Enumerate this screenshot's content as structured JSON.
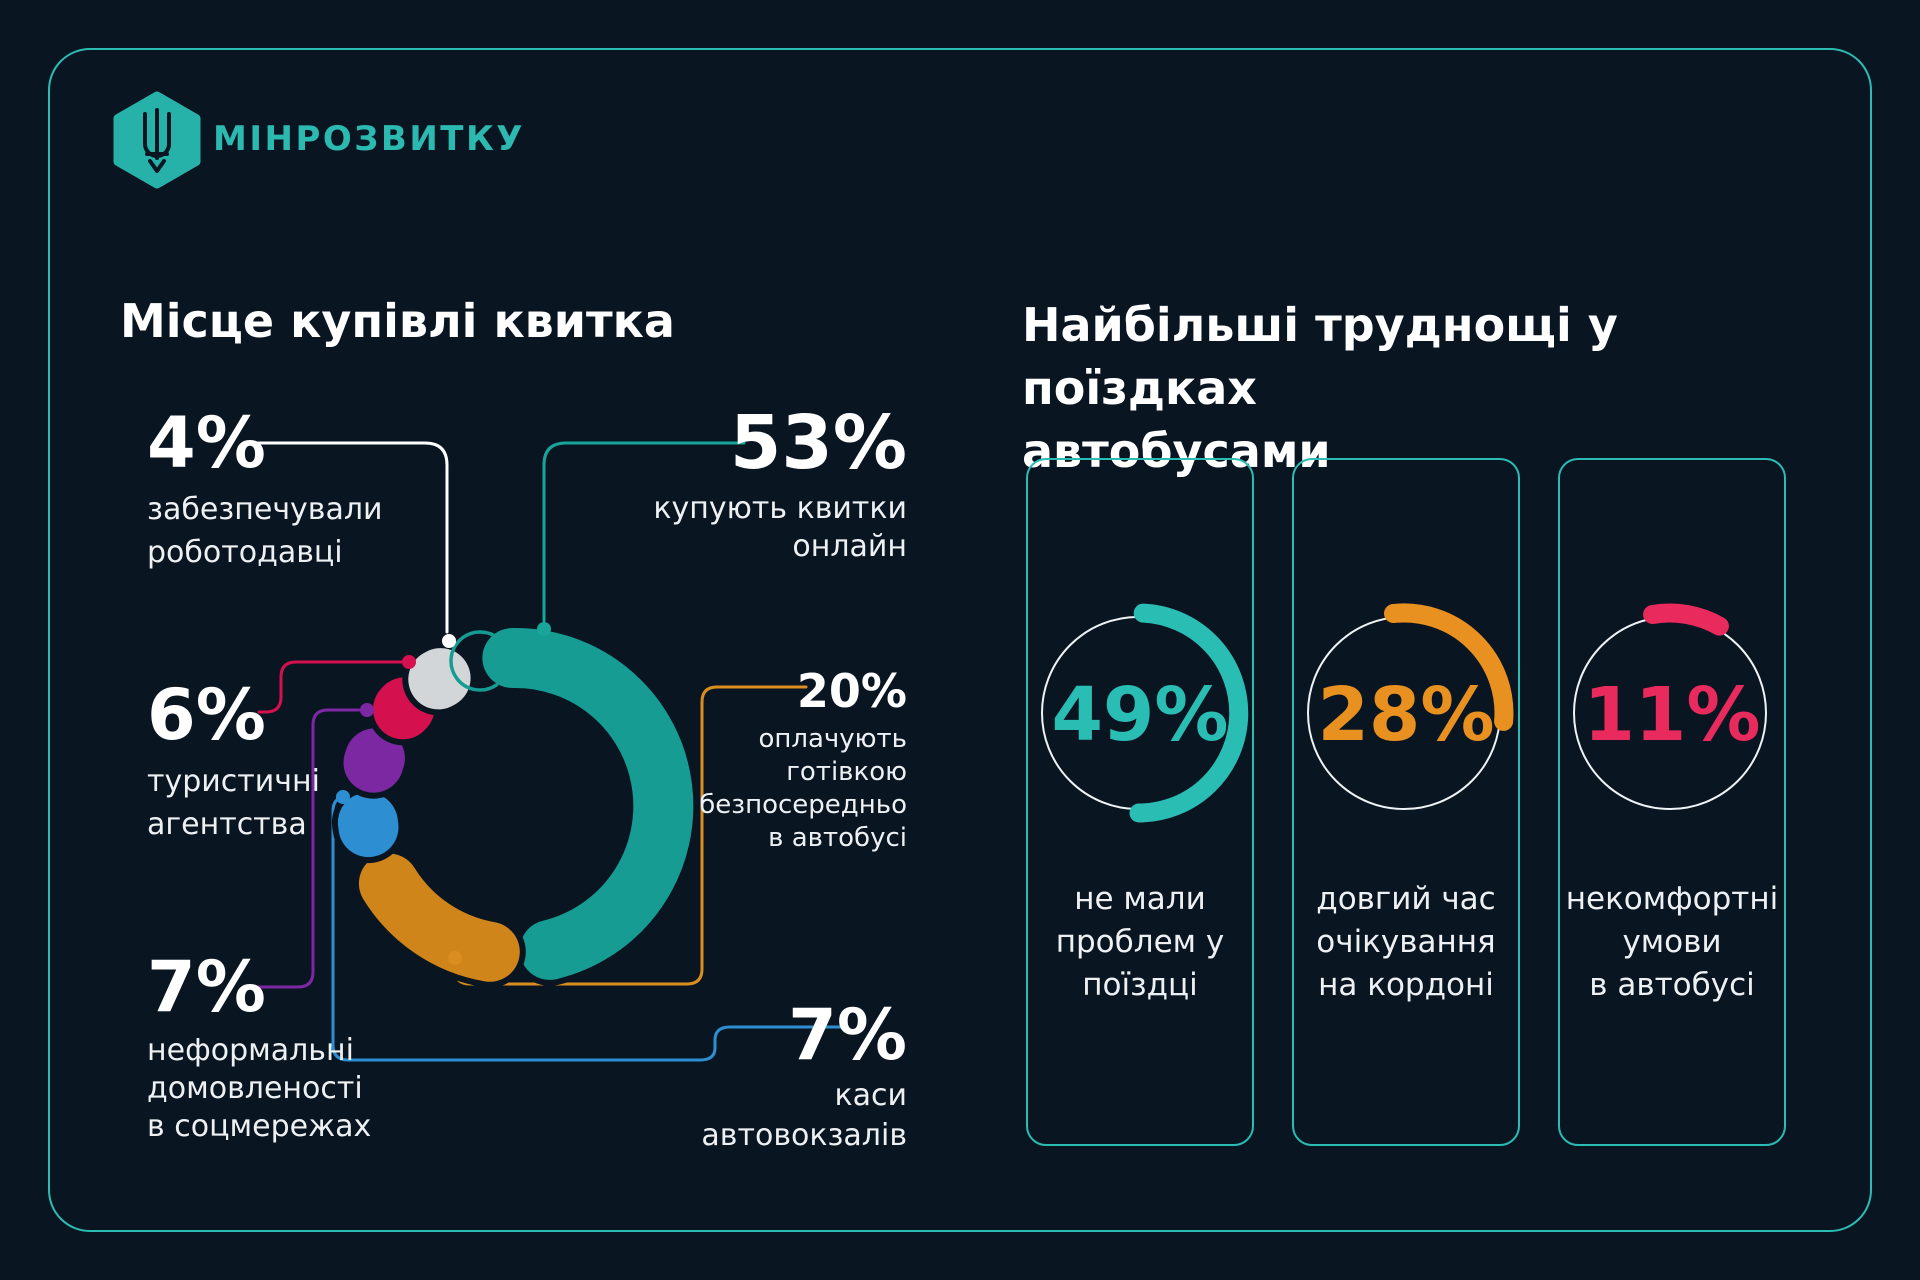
{
  "brand": {
    "name": "МІНРОЗВИТКУ"
  },
  "left_section": {
    "title": "Місце купівлі квитка",
    "blocks": [
      {
        "pct": "53%",
        "text": "купують квитки\nонлайн"
      },
      {
        "pct": "20%",
        "text": "оплачують\nготівкою\nбезпосередньо\nв автобусі"
      },
      {
        "pct": "7%",
        "text": "каси\nавтовокзалів"
      },
      {
        "pct": "7%",
        "text": "неформальні\nдомовленості\nв соцмережах"
      },
      {
        "pct": "6%",
        "text": "туристичні\nагентства"
      },
      {
        "pct": "4%",
        "text": "забезпечували\nроботодавці"
      }
    ]
  },
  "right_section": {
    "title": "Найбільші труднощі у поїздках\nавтобусами",
    "cards": [
      {
        "pct": "49%",
        "text": "не мали\nпроблем у\nпоїздці"
      },
      {
        "pct": "28%",
        "text": "довгий час\nочікування\nна кордоні"
      },
      {
        "pct": "11%",
        "text": "некомфортні\nумови\nв автобусі"
      }
    ]
  },
  "chart_data": [
    {
      "type": "pie",
      "subtype": "donut",
      "title": "Місце купівлі квитка",
      "units": "%",
      "segments": [
        {
          "label": "купують квитки онлайн",
          "value": 53,
          "color": "#169c93"
        },
        {
          "label": "оплачують готівкою безпосередньо в автобусі",
          "value": 20,
          "color": "#cf8519"
        },
        {
          "label": "каси автовокзалів",
          "value": 7,
          "color": "#2d8fd1"
        },
        {
          "label": "неформальні домовленості в соцмережах",
          "value": 7,
          "color": "#7d28a3"
        },
        {
          "label": "туристичні агентства",
          "value": 6,
          "color": "#d5104e"
        },
        {
          "label": "забезпечували роботодавці",
          "value": 4,
          "color": "#d3d6d9"
        }
      ]
    },
    {
      "type": "gauge",
      "title": "Найбільші труднощі у поїздках автобусами",
      "units": "%",
      "items": [
        {
          "label": "не мали проблем у поїздці",
          "value": 49,
          "color": "#2abdb4"
        },
        {
          "label": "довгий час очікування на кордоні",
          "value": 28,
          "color": "#e89120"
        },
        {
          "label": "некомфортні умови в автобусі",
          "value": 11,
          "color": "#e92a5c"
        }
      ]
    }
  ],
  "colors": {
    "background": "#0a1522",
    "frame": "#2bbcb3",
    "logo": "#26b2a8",
    "logo_text": "#2cb9af",
    "heading_text": "#ffffff",
    "label_text": "#edf1f4",
    "connector_white": "#ffffff",
    "connector_teal": "#1aa59b",
    "connector_orange": "#d98e1f",
    "connector_red": "#d5104e",
    "connector_purple": "#7d28a3",
    "connector_blue": "#2d8fd1",
    "gauge_circle": "#eef3f5"
  }
}
